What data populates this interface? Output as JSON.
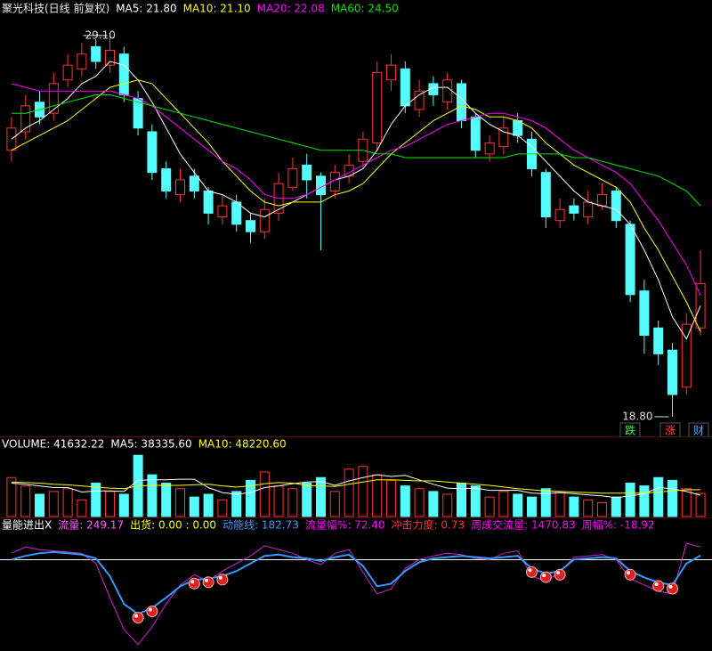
{
  "chart_data": [
    {
      "type": "candlestick",
      "header": [
        {
          "text": "聚光科技(日线 前复权)",
          "color": "#e8e8e8"
        },
        {
          "text": "MA5: 21.80",
          "color": "#ffffff"
        },
        {
          "text": "MA10: 21.10",
          "color": "#ffff00"
        },
        {
          "text": "MA20: 22.08",
          "color": "#ff00ff"
        },
        {
          "text": "MA60: 24.50",
          "color": "#00e600"
        }
      ],
      "open": [
        26.0,
        26.5,
        27.3,
        27.0,
        27.9,
        28.2,
        28.8,
        28.3,
        28.6,
        27.4,
        26.5,
        25.5,
        24.8,
        25.3,
        24.9,
        24.2,
        24.6,
        24.1,
        23.8,
        24.3,
        25.0,
        25.6,
        25.3,
        24.9,
        25.3,
        25.7,
        26.2,
        27.9,
        28.2,
        27.1,
        27.8,
        27.3,
        27.8,
        26.9,
        25.9,
        26.1,
        26.8,
        26.3,
        25.4,
        24.1,
        24.5,
        24.2,
        24.5,
        24.9,
        24.0,
        22.2,
        21.2,
        20.6,
        19.6,
        21.2
      ],
      "high": [
        26.9,
        27.5,
        27.6,
        28.1,
        28.6,
        28.9,
        29.0,
        29.1,
        28.8,
        27.6,
        26.7,
        25.7,
        25.5,
        25.5,
        25.0,
        24.8,
        24.8,
        24.3,
        24.7,
        25.4,
        25.8,
        25.9,
        25.4,
        25.6,
        25.9,
        26.5,
        28.4,
        28.6,
        28.4,
        27.9,
        28.0,
        28.1,
        27.9,
        27.0,
        26.4,
        26.9,
        27.0,
        26.5,
        25.5,
        24.7,
        24.7,
        24.9,
        25.1,
        25.0,
        24.1,
        22.5,
        21.4,
        20.8,
        21.6,
        23.3
      ],
      "low": [
        25.7,
        26.3,
        26.7,
        26.8,
        27.7,
        28.0,
        28.2,
        28.1,
        27.3,
        26.4,
        25.2,
        24.7,
        24.6,
        24.7,
        24.0,
        24.0,
        23.8,
        23.5,
        23.6,
        24.1,
        24.9,
        24.7,
        23.3,
        24.7,
        25.1,
        25.5,
        26.0,
        27.6,
        27.0,
        26.9,
        27.2,
        27.1,
        26.6,
        25.8,
        25.7,
        25.9,
        26.2,
        25.3,
        23.9,
        23.9,
        24.1,
        24.0,
        24.4,
        23.9,
        21.9,
        20.5,
        20.2,
        18.8,
        19.4,
        21.0
      ],
      "close": [
        26.6,
        27.2,
        26.9,
        27.8,
        28.3,
        28.6,
        28.4,
        28.7,
        27.5,
        26.6,
        25.4,
        24.9,
        25.2,
        24.9,
        24.3,
        24.5,
        24.0,
        23.8,
        24.4,
        25.1,
        25.5,
        25.2,
        24.8,
        25.4,
        25.6,
        26.3,
        28.1,
        28.3,
        27.2,
        27.6,
        27.5,
        27.9,
        26.8,
        26.0,
        26.2,
        26.6,
        26.4,
        25.5,
        24.2,
        24.4,
        24.3,
        24.6,
        24.8,
        24.1,
        22.1,
        21.0,
        20.5,
        19.4,
        21.3,
        22.4
      ],
      "up_color": "#ff3232",
      "down_color": "#54fcfc",
      "series": [
        {
          "color": "#ffffff",
          "values": [
            26.3,
            26.6,
            26.8,
            27.1,
            27.4,
            27.8,
            28.0,
            28.4,
            28.3,
            27.9,
            27.3,
            26.6,
            25.9,
            25.4,
            24.9,
            24.8,
            24.6,
            24.3,
            24.2,
            24.4,
            24.6,
            24.8,
            25.0,
            25.2,
            25.3,
            25.5,
            26.0,
            26.7,
            27.2,
            27.5,
            27.7,
            27.7,
            27.4,
            27.0,
            26.7,
            26.5,
            26.4,
            26.1,
            25.7,
            25.3,
            24.9,
            24.6,
            24.5,
            24.4,
            24.0,
            23.3,
            22.5,
            21.5,
            20.9,
            21.8
          ]
        },
        {
          "color": "#ffff00",
          "values": [
            26.0,
            26.2,
            26.4,
            26.6,
            26.8,
            27.1,
            27.4,
            27.7,
            27.8,
            27.9,
            27.8,
            27.4,
            27.0,
            26.6,
            26.2,
            25.7,
            25.3,
            24.9,
            24.6,
            24.5,
            24.6,
            24.6,
            24.6,
            24.8,
            24.9,
            25.1,
            25.5,
            25.9,
            26.2,
            26.5,
            26.8,
            27.0,
            27.2,
            27.1,
            26.9,
            26.9,
            26.8,
            26.6,
            26.2,
            25.9,
            25.6,
            25.4,
            25.2,
            25.0,
            24.6,
            23.9,
            23.3,
            22.6,
            21.9,
            21.1
          ]
        },
        {
          "color": "#ff00ff",
          "values": [
            27.8,
            27.7,
            27.6,
            27.6,
            27.6,
            27.6,
            27.6,
            27.6,
            27.5,
            27.4,
            27.2,
            26.9,
            26.6,
            26.3,
            26.0,
            25.7,
            25.5,
            25.2,
            24.8,
            24.7,
            24.7,
            24.8,
            25.0,
            25.2,
            25.4,
            25.6,
            25.8,
            26.0,
            26.1,
            26.3,
            26.5,
            26.7,
            26.8,
            26.9,
            27.0,
            27.0,
            26.9,
            26.8,
            26.6,
            26.3,
            26.0,
            25.8,
            25.6,
            25.4,
            25.1,
            24.6,
            24.1,
            23.5,
            22.9,
            22.08
          ]
        },
        {
          "color": "#00e600",
          "values": [
            27.0,
            27.0,
            27.1,
            27.2,
            27.3,
            27.4,
            27.5,
            27.5,
            27.4,
            27.3,
            27.2,
            27.1,
            27.0,
            26.9,
            26.8,
            26.7,
            26.6,
            26.5,
            26.4,
            26.3,
            26.2,
            26.1,
            26.0,
            26.0,
            26.0,
            26.0,
            25.9,
            25.9,
            25.8,
            25.8,
            25.8,
            25.8,
            25.8,
            25.8,
            25.8,
            25.8,
            25.9,
            25.9,
            25.9,
            25.9,
            25.8,
            25.8,
            25.7,
            25.6,
            25.5,
            25.4,
            25.3,
            25.1,
            24.9,
            24.5
          ]
        }
      ],
      "ylim": [
        18.27,
        30.06
      ],
      "high_label": "29.10",
      "low_label": "18.80",
      "buttons": [
        {
          "text": "跌",
          "color": "#33ff33"
        },
        {
          "text": "涨",
          "color": "#ff4040"
        },
        {
          "text": "财",
          "color": "#4da6ff"
        }
      ]
    },
    {
      "type": "bar",
      "header": [
        {
          "text": "VOLUME: 41632.22",
          "color": "#ffffff"
        },
        {
          "text": "MA5: 38335.60",
          "color": "#ffffff"
        },
        {
          "text": "MA10: 48220.60",
          "color": "#ffff00"
        }
      ],
      "values": [
        70000,
        55000,
        40000,
        45000,
        50000,
        30000,
        60000,
        45000,
        40000,
        110000,
        75000,
        60000,
        50000,
        35000,
        40000,
        30000,
        45000,
        65000,
        80000,
        55000,
        50000,
        60000,
        70000,
        45000,
        85000,
        90000,
        75000,
        65000,
        55000,
        50000,
        45000,
        40000,
        60000,
        55000,
        35000,
        45000,
        40000,
        35000,
        50000,
        45000,
        35000,
        30000,
        25000,
        35000,
        60000,
        55000,
        70000,
        65000,
        50000,
        41632.22
      ],
      "series": [
        {
          "color": "#ffffff",
          "values": [
            60000,
            58000,
            55000,
            52000,
            52000,
            44000,
            46000,
            46000,
            45000,
            65000,
            66000,
            66000,
            67000,
            67000,
            52000,
            43000,
            40000,
            43000,
            52000,
            55000,
            59000,
            62000,
            63000,
            56000,
            64000,
            70000,
            75000,
            72000,
            74000,
            66000,
            58000,
            51000,
            50000,
            51000,
            47000,
            47000,
            47000,
            42000,
            41000,
            43000,
            41000,
            39000,
            37000,
            34000,
            37000,
            41000,
            52000,
            50000,
            45000,
            38335.6
          ]
        },
        {
          "color": "#ffff00",
          "values": [
            62000,
            61000,
            60000,
            58000,
            57000,
            55000,
            53000,
            51000,
            50000,
            55000,
            56000,
            56000,
            56000,
            57000,
            58000,
            55000,
            53000,
            55000,
            59000,
            61000,
            60000,
            56000,
            55000,
            54000,
            58000,
            62000,
            66000,
            66000,
            65000,
            64000,
            64000,
            62000,
            60000,
            58000,
            56000,
            53000,
            50000,
            48000,
            46000,
            45000,
            44000,
            43000,
            42000,
            42000,
            42000,
            42000,
            44000,
            46000,
            48000,
            48220.6
          ]
        }
      ],
      "ylim": [
        0,
        120000
      ]
    },
    {
      "type": "line",
      "header": [
        {
          "text": "量能进出X",
          "color": "#ffffff"
        },
        {
          "text": "流量: 249.17",
          "color": "#ff55ff"
        },
        {
          "text": "出货: 0.00 : 0.00",
          "color": "#ffff00"
        },
        {
          "text": "动能线: 182.73",
          "color": "#3399ff"
        },
        {
          "text": "流量幅%: 72.40",
          "color": "#ff00ff"
        },
        {
          "text": "冲击力度: 0.73",
          "color": "#ff3030"
        },
        {
          "text": "周成交流量: 1470.83",
          "color": "#ff00ff"
        },
        {
          "text": "周幅%: -18.92",
          "color": "#ff00ff"
        }
      ],
      "series": [
        {
          "color": "#cc22cc",
          "values": [
            200,
            250,
            230,
            220,
            210,
            200,
            120,
            -150,
            -400,
            -520,
            -380,
            -200,
            -50,
            30,
            -20,
            60,
            120,
            180,
            260,
            230,
            200,
            150,
            110,
            200,
            230,
            50,
            -120,
            -80,
            80,
            150,
            180,
            200,
            190,
            160,
            150,
            200,
            220,
            20,
            -20,
            50,
            170,
            180,
            190,
            150,
            0,
            -50,
            -100,
            -120,
            280,
            249.17
          ]
        },
        {
          "color": "#3399ff",
          "values": [
            150,
            180,
            200,
            210,
            200,
            190,
            160,
            20,
            -200,
            -280,
            -230,
            -150,
            -60,
            -10,
            0,
            20,
            60,
            120,
            180,
            190,
            170,
            160,
            140,
            170,
            190,
            100,
            -60,
            -40,
            60,
            130,
            160,
            170,
            180,
            170,
            160,
            170,
            180,
            80,
            40,
            60,
            150,
            160,
            170,
            160,
            60,
            10,
            -30,
            -50,
            120,
            182.73
          ]
        }
      ],
      "ref_line": 150,
      "signals": [
        9,
        10,
        13,
        14,
        15,
        37,
        38,
        39,
        44,
        46,
        47
      ],
      "ylim": [
        -550,
        350
      ]
    }
  ]
}
